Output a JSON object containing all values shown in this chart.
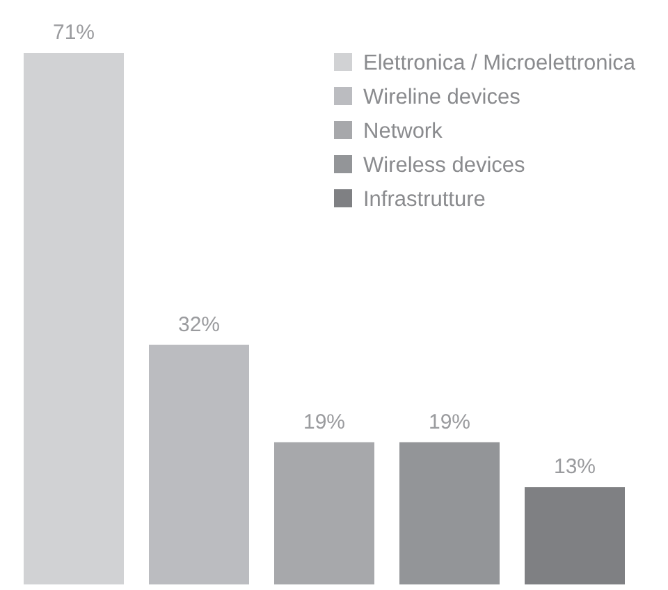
{
  "chart_data": {
    "type": "bar",
    "categories": [
      null,
      null,
      null,
      null,
      null
    ],
    "series": [
      {
        "name": "Elettronica / Microelettronica",
        "color": "#d1d2d4",
        "values": [
          71,
          null,
          null,
          null,
          null
        ],
        "value_labels": [
          "71%",
          null,
          null,
          null,
          null
        ]
      },
      {
        "name": "Wireline devices",
        "color": "#bbbcc0",
        "values": [
          null,
          32,
          null,
          null,
          null
        ],
        "value_labels": [
          null,
          "32%",
          null,
          null,
          null
        ]
      },
      {
        "name": "Network",
        "color": "#a7a8ab",
        "values": [
          null,
          null,
          19,
          null,
          null
        ],
        "value_labels": [
          null,
          null,
          "19%",
          null,
          null
        ]
      },
      {
        "name": "Wireless devices",
        "color": "#939598",
        "values": [
          null,
          null,
          null,
          19,
          null
        ],
        "value_labels": [
          null,
          null,
          null,
          "19%",
          null
        ]
      },
      {
        "name": "Infrastrutture",
        "color": "#7f8083",
        "values": [
          null,
          null,
          null,
          null,
          13
        ],
        "value_labels": [
          null,
          null,
          null,
          null,
          "13%"
        ]
      }
    ],
    "stacked": true,
    "legend": "top right"
  }
}
